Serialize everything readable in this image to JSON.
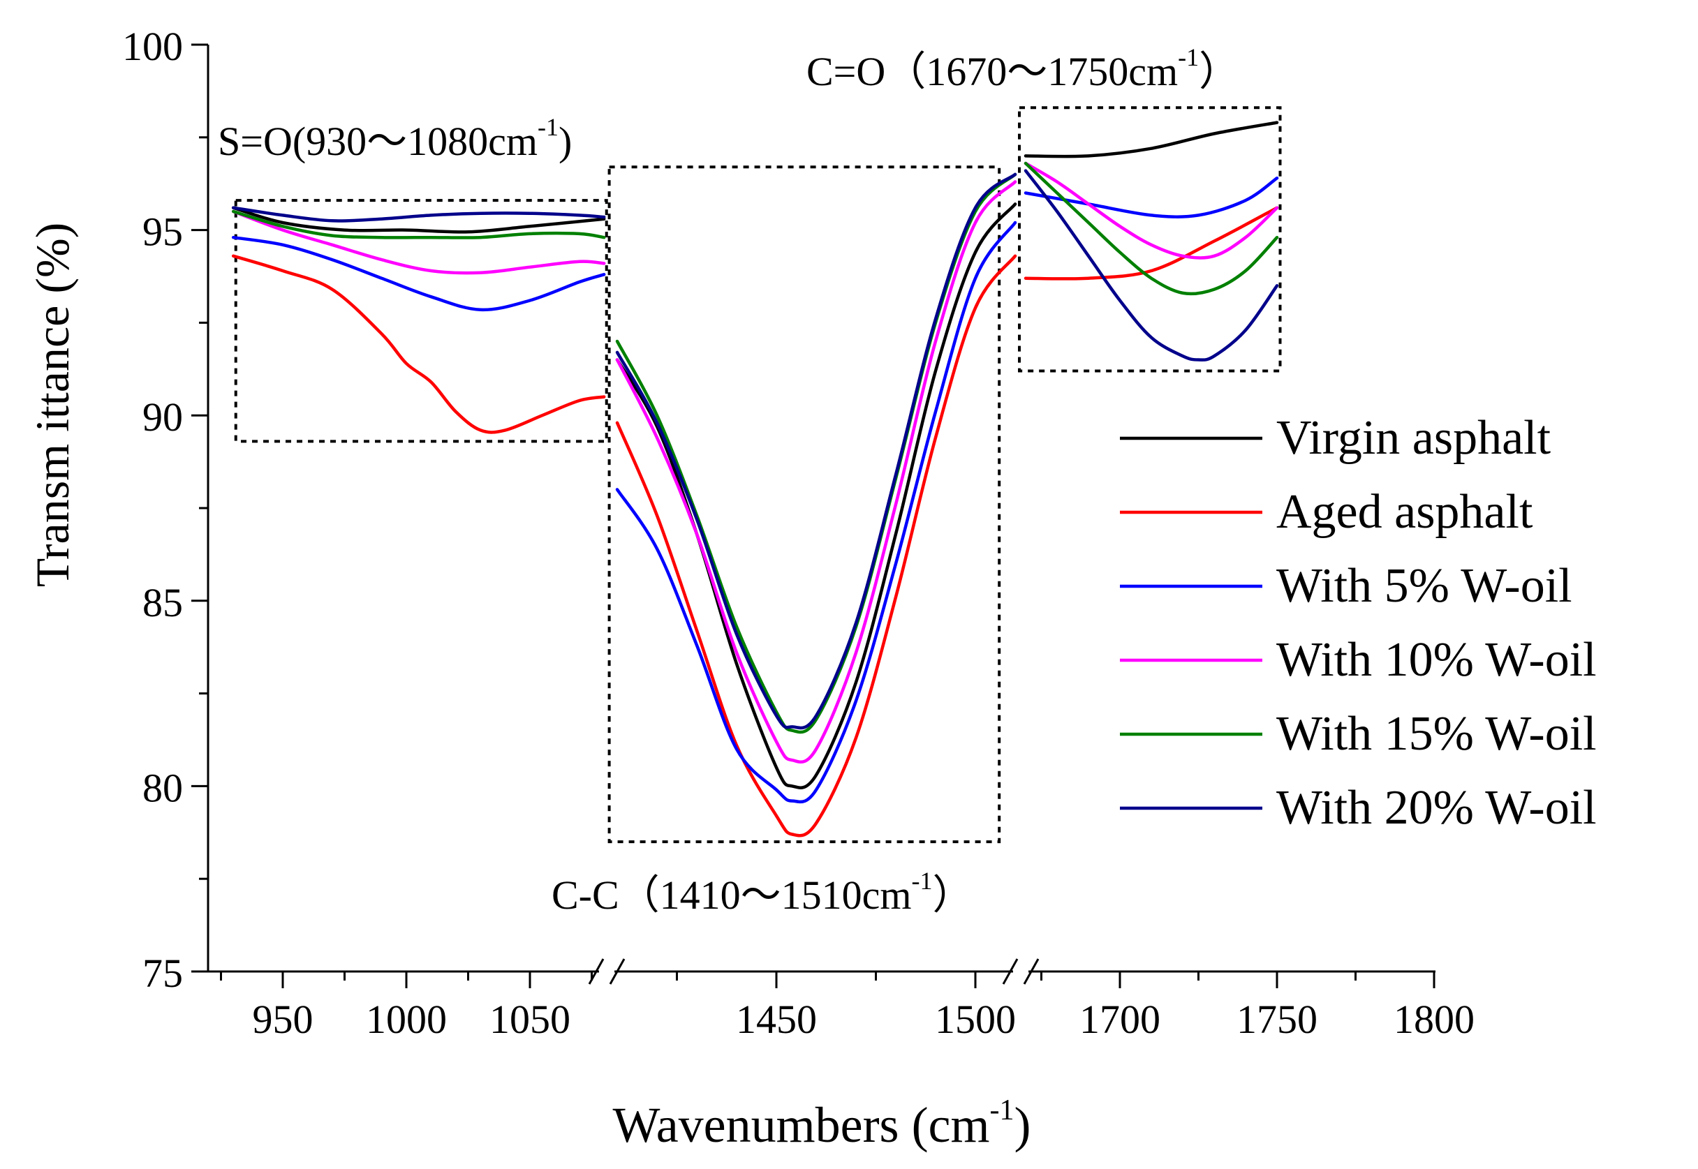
{
  "chart_data": {
    "type": "line",
    "ylabel": "Transm ittance (%)",
    "xlabel": "Wavenumbers (cm",
    "xlabel_sup": "-1",
    "xlabel_tail": ")",
    "ylim": [
      75,
      100
    ],
    "yticks": [
      75,
      80,
      85,
      90,
      95,
      100
    ],
    "ytick_labels": [
      "75",
      "80",
      "85",
      "90",
      "95",
      "100"
    ],
    "segments": [
      {
        "name": "S=O",
        "xlim": [
          915,
          1080
        ],
        "major_ticks": [
          950,
          1000,
          1050
        ],
        "minor_ticks": [
          925,
          975,
          1025,
          1075
        ]
      },
      {
        "name": "C-C",
        "xlim": [
          1410,
          1510
        ],
        "major_ticks": [
          1450,
          1500
        ],
        "minor_ticks": [
          1425,
          1475
        ]
      },
      {
        "name": "C=O",
        "xlim": [
          1670,
          1800
        ],
        "major_ticks": [
          1700,
          1750,
          1800
        ],
        "minor_ticks": [
          1675,
          1725,
          1775
        ]
      }
    ],
    "xtick_labels": [
      "950",
      "1000",
      "1050",
      "1450",
      "1500",
      "1700",
      "1750",
      "1800"
    ],
    "annotations": [
      {
        "id": "so",
        "text": "S=O(930～1080cm",
        "sup": "-1",
        "tail": ")"
      },
      {
        "id": "cc",
        "text": "C-C（1410～1510cm",
        "sup": "-1",
        "tail": "）"
      },
      {
        "id": "co",
        "text": "C=O（1670～1750cm",
        "sup": "-1",
        "tail": "）"
      }
    ],
    "series": [
      {
        "name": "Virgin asphalt",
        "color": "#000000",
        "so": {
          "x": [
            930,
            950,
            975,
            1000,
            1025,
            1050,
            1080
          ],
          "y": [
            95.6,
            95.2,
            95.0,
            95.0,
            94.95,
            95.1,
            95.3
          ]
        },
        "cc": {
          "x": [
            1410,
            1420,
            1430,
            1440,
            1450,
            1454,
            1460,
            1470,
            1480,
            1490,
            1500,
            1510
          ],
          "y": [
            91.5,
            89.7,
            86.8,
            83.3,
            80.5,
            80.0,
            80.3,
            82.8,
            86.8,
            91.2,
            94.4,
            95.7
          ]
        },
        "co": {
          "x": [
            1670,
            1690,
            1710,
            1730,
            1750
          ],
          "y": [
            97.0,
            97.0,
            97.2,
            97.6,
            97.9
          ]
        }
      },
      {
        "name": "Aged asphalt",
        "color": "#ff0000",
        "so": {
          "x": [
            930,
            950,
            970,
            990,
            1000,
            1010,
            1020,
            1030,
            1040,
            1055,
            1070,
            1080
          ],
          "y": [
            94.3,
            93.9,
            93.4,
            92.2,
            91.4,
            90.9,
            90.1,
            89.6,
            89.6,
            90.0,
            90.4,
            90.5
          ]
        },
        "cc": {
          "x": [
            1410,
            1420,
            1430,
            1440,
            1450,
            1454,
            1460,
            1470,
            1480,
            1490,
            1500,
            1510
          ],
          "y": [
            89.8,
            87.3,
            84.2,
            81.1,
            79.2,
            78.7,
            79.0,
            81.3,
            85.1,
            89.4,
            92.9,
            94.3
          ]
        },
        "co": {
          "x": [
            1670,
            1690,
            1710,
            1730,
            1750
          ],
          "y": [
            93.7,
            93.7,
            93.9,
            94.7,
            95.6
          ]
        }
      },
      {
        "name": "With 5% W-oil",
        "color": "#0000ff",
        "so": {
          "x": [
            930,
            950,
            970,
            990,
            1010,
            1030,
            1050,
            1070,
            1080
          ],
          "y": [
            94.8,
            94.6,
            94.2,
            93.7,
            93.2,
            92.85,
            93.1,
            93.6,
            93.8
          ]
        },
        "cc": {
          "x": [
            1410,
            1420,
            1430,
            1440,
            1450,
            1454,
            1460,
            1470,
            1480,
            1490,
            1500,
            1510
          ],
          "y": [
            88.0,
            86.4,
            83.8,
            81.0,
            79.9,
            79.6,
            79.9,
            82.3,
            86.0,
            90.1,
            93.7,
            95.2
          ]
        },
        "co": {
          "x": [
            1670,
            1690,
            1710,
            1725,
            1740,
            1750
          ],
          "y": [
            96.0,
            95.7,
            95.4,
            95.4,
            95.8,
            96.4
          ]
        }
      },
      {
        "name": "With 10% W-oil",
        "color": "#ff00ff",
        "so": {
          "x": [
            930,
            950,
            970,
            990,
            1010,
            1030,
            1050,
            1070,
            1080
          ],
          "y": [
            95.5,
            95.0,
            94.6,
            94.2,
            93.9,
            93.85,
            94.0,
            94.15,
            94.1
          ]
        },
        "cc": {
          "x": [
            1410,
            1420,
            1430,
            1440,
            1450,
            1454,
            1460,
            1470,
            1480,
            1490,
            1500,
            1510
          ],
          "y": [
            91.5,
            89.4,
            86.8,
            83.6,
            81.2,
            80.7,
            81.0,
            83.6,
            87.6,
            92.0,
            95.2,
            96.3
          ]
        },
        "co": {
          "x": [
            1670,
            1680,
            1690,
            1700,
            1710,
            1720,
            1730,
            1740,
            1750
          ],
          "y": [
            96.8,
            96.3,
            95.7,
            95.1,
            94.6,
            94.3,
            94.3,
            94.8,
            95.6
          ]
        }
      },
      {
        "name": "With 15% W-oil",
        "color": "#008000",
        "so": {
          "x": [
            930,
            950,
            970,
            990,
            1010,
            1030,
            1050,
            1070,
            1080
          ],
          "y": [
            95.5,
            95.1,
            94.85,
            94.8,
            94.8,
            94.8,
            94.9,
            94.9,
            94.8
          ]
        },
        "cc": {
          "x": [
            1410,
            1420,
            1430,
            1440,
            1450,
            1454,
            1460,
            1470,
            1480,
            1490,
            1500,
            1510
          ],
          "y": [
            92.0,
            90.0,
            87.3,
            84.3,
            82.0,
            81.5,
            81.8,
            84.3,
            88.3,
            92.5,
            95.5,
            96.5
          ]
        },
        "co": {
          "x": [
            1670,
            1680,
            1690,
            1700,
            1710,
            1720,
            1730,
            1740,
            1750
          ],
          "y": [
            96.8,
            96.0,
            95.2,
            94.4,
            93.7,
            93.3,
            93.4,
            93.9,
            94.8
          ]
        }
      },
      {
        "name": "With 20% W-oil",
        "color": "#00008b",
        "so": {
          "x": [
            930,
            950,
            970,
            990,
            1010,
            1030,
            1050,
            1070,
            1080
          ],
          "y": [
            95.6,
            95.4,
            95.25,
            95.3,
            95.4,
            95.45,
            95.45,
            95.4,
            95.35
          ]
        },
        "cc": {
          "x": [
            1410,
            1420,
            1430,
            1440,
            1450,
            1454,
            1460,
            1470,
            1480,
            1490,
            1500,
            1510
          ],
          "y": [
            91.7,
            89.8,
            87.2,
            84.1,
            81.9,
            81.6,
            81.9,
            84.4,
            88.4,
            92.6,
            95.6,
            96.5
          ]
        },
        "co": {
          "x": [
            1670,
            1680,
            1690,
            1700,
            1710,
            1720,
            1725,
            1730,
            1740,
            1750
          ],
          "y": [
            96.6,
            95.5,
            94.3,
            93.1,
            92.1,
            91.6,
            91.5,
            91.6,
            92.3,
            93.5
          ]
        }
      }
    ]
  }
}
